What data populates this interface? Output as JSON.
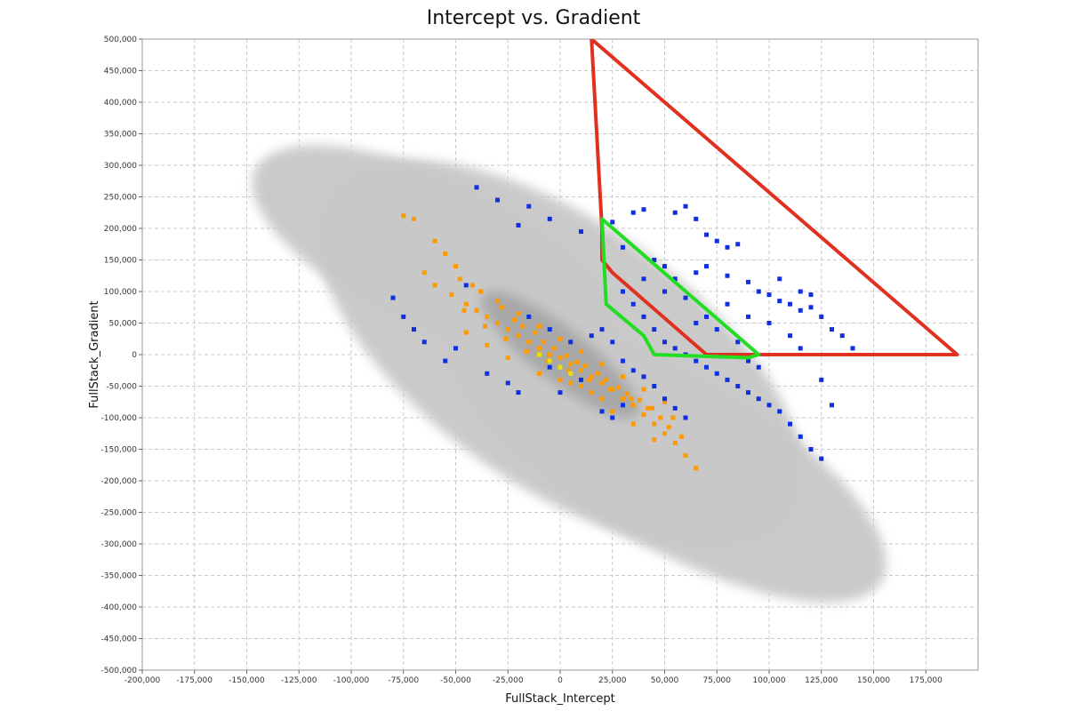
{
  "chart_data": {
    "type": "scatter",
    "title": "Intercept vs. Gradient",
    "xlabel": "FullStack_Intercept",
    "ylabel": "FullStack_Gradient",
    "xlim": [
      -200000,
      200000
    ],
    "ylim": [
      -500000,
      500000
    ],
    "x_ticks": [
      "-200,000",
      "-175,000",
      "-150,000",
      "-125,000",
      "-100,000",
      "-75,000",
      "-50,000",
      "-25,000",
      "0",
      "25,000",
      "50,000",
      "75,000",
      "100,000",
      "125,000",
      "150,000",
      "175,000"
    ],
    "x_tick_values": [
      -200000,
      -175000,
      -150000,
      -125000,
      -100000,
      -75000,
      -50000,
      -25000,
      0,
      25000,
      50000,
      75000,
      100000,
      125000,
      150000,
      175000
    ],
    "y_ticks": [
      "500,000",
      "450,000",
      "400,000",
      "350,000",
      "300,000",
      "250,000",
      "200,000",
      "150,000",
      "100,000",
      "50,000",
      "0",
      "-50,000",
      "-100,000",
      "-150,000",
      "-200,000",
      "-250,000",
      "-300,000",
      "-350,000",
      "-400,000",
      "-450,000",
      "-500,000"
    ],
    "y_tick_values": [
      500000,
      450000,
      400000,
      350000,
      300000,
      250000,
      200000,
      150000,
      100000,
      50000,
      0,
      -50000,
      -100000,
      -150000,
      -200000,
      -250000,
      -300000,
      -350000,
      -400000,
      -450000,
      -500000
    ],
    "grid": true,
    "background_cloud": {
      "color": "#c8c8c8",
      "ellipses": [
        {
          "cx": 0,
          "cy": 0,
          "rx": 135000,
          "ry": 210000,
          "rotate": 35
        },
        {
          "cx": 50000,
          "cy": -160000,
          "rx": 120000,
          "ry": 140000,
          "rotate": 30
        },
        {
          "cx": -60000,
          "cy": 160000,
          "rx": 95000,
          "ry": 120000,
          "rotate": 25
        }
      ]
    },
    "series": [
      {
        "color": "#ff9900",
        "points": [
          [
            -65000,
            130000
          ],
          [
            -60000,
            110000
          ],
          [
            -52000,
            95000
          ],
          [
            -45000,
            80000
          ],
          [
            -40000,
            70000
          ],
          [
            -35000,
            60000
          ],
          [
            -30000,
            50000
          ],
          [
            -25000,
            40000
          ],
          [
            -20000,
            30000
          ],
          [
            -15000,
            20000
          ],
          [
            -10000,
            10000
          ],
          [
            -5000,
            0
          ],
          [
            0,
            -5000
          ],
          [
            5000,
            -15000
          ],
          [
            10000,
            -25000
          ],
          [
            15000,
            -35000
          ],
          [
            20000,
            -45000
          ],
          [
            25000,
            -55000
          ],
          [
            30000,
            -70000
          ],
          [
            35000,
            -80000
          ],
          [
            40000,
            -95000
          ],
          [
            45000,
            -110000
          ],
          [
            50000,
            -125000
          ],
          [
            55000,
            -140000
          ],
          [
            -75000,
            220000
          ],
          [
            -70000,
            215000
          ],
          [
            -60000,
            180000
          ],
          [
            -50000,
            140000
          ],
          [
            -48000,
            120000
          ],
          [
            -42000,
            110000
          ],
          [
            -38000,
            100000
          ],
          [
            -55000,
            160000
          ],
          [
            -28000,
            75000
          ],
          [
            -22000,
            55000
          ],
          [
            -18000,
            45000
          ],
          [
            -12000,
            35000
          ],
          [
            -8000,
            20000
          ],
          [
            -3000,
            10000
          ],
          [
            3000,
            -2000
          ],
          [
            8000,
            -12000
          ],
          [
            12000,
            -18000
          ],
          [
            18000,
            -30000
          ],
          [
            22000,
            -40000
          ],
          [
            28000,
            -52000
          ],
          [
            32000,
            -62000
          ],
          [
            38000,
            -72000
          ],
          [
            42000,
            -85000
          ],
          [
            48000,
            -100000
          ],
          [
            52000,
            -115000
          ],
          [
            58000,
            -130000
          ],
          [
            -46000,
            70000
          ],
          [
            -36000,
            45000
          ],
          [
            -26000,
            25000
          ],
          [
            -16000,
            5000
          ],
          [
            -6000,
            -10000
          ],
          [
            4000,
            -25000
          ],
          [
            14000,
            -40000
          ],
          [
            24000,
            -55000
          ],
          [
            34000,
            -70000
          ],
          [
            44000,
            -85000
          ],
          [
            54000,
            -100000
          ],
          [
            -30000,
            85000
          ],
          [
            -20000,
            65000
          ],
          [
            -10000,
            45000
          ],
          [
            0,
            25000
          ],
          [
            10000,
            5000
          ],
          [
            20000,
            -15000
          ],
          [
            30000,
            -35000
          ],
          [
            40000,
            -55000
          ],
          [
            50000,
            -75000
          ],
          [
            60000,
            -160000
          ],
          [
            65000,
            -180000
          ],
          [
            -10000,
            -30000
          ],
          [
            0,
            -40000
          ],
          [
            10000,
            -50000
          ],
          [
            20000,
            -70000
          ],
          [
            -25000,
            -5000
          ],
          [
            -35000,
            15000
          ],
          [
            -45000,
            35000
          ],
          [
            25000,
            -90000
          ],
          [
            35000,
            -110000
          ],
          [
            45000,
            -135000
          ],
          [
            15000,
            -60000
          ],
          [
            5000,
            -45000
          ]
        ]
      },
      {
        "color": "#1030e0",
        "points": [
          [
            -40000,
            265000
          ],
          [
            -30000,
            245000
          ],
          [
            -15000,
            235000
          ],
          [
            -20000,
            205000
          ],
          [
            -5000,
            215000
          ],
          [
            10000,
            195000
          ],
          [
            25000,
            210000
          ],
          [
            35000,
            225000
          ],
          [
            40000,
            230000
          ],
          [
            55000,
            225000
          ],
          [
            60000,
            235000
          ],
          [
            65000,
            215000
          ],
          [
            70000,
            190000
          ],
          [
            75000,
            180000
          ],
          [
            80000,
            170000
          ],
          [
            85000,
            175000
          ],
          [
            30000,
            170000
          ],
          [
            45000,
            150000
          ],
          [
            50000,
            140000
          ],
          [
            55000,
            120000
          ],
          [
            65000,
            130000
          ],
          [
            70000,
            140000
          ],
          [
            80000,
            125000
          ],
          [
            90000,
            115000
          ],
          [
            95000,
            100000
          ],
          [
            100000,
            95000
          ],
          [
            105000,
            85000
          ],
          [
            110000,
            80000
          ],
          [
            115000,
            70000
          ],
          [
            120000,
            75000
          ],
          [
            125000,
            60000
          ],
          [
            130000,
            40000
          ],
          [
            135000,
            30000
          ],
          [
            -80000,
            90000
          ],
          [
            -75000,
            60000
          ],
          [
            -70000,
            40000
          ],
          [
            -65000,
            20000
          ],
          [
            -55000,
            -10000
          ],
          [
            -50000,
            10000
          ],
          [
            30000,
            100000
          ],
          [
            35000,
            80000
          ],
          [
            40000,
            60000
          ],
          [
            45000,
            40000
          ],
          [
            50000,
            20000
          ],
          [
            55000,
            10000
          ],
          [
            60000,
            0
          ],
          [
            65000,
            -10000
          ],
          [
            70000,
            -20000
          ],
          [
            75000,
            -30000
          ],
          [
            80000,
            -40000
          ],
          [
            85000,
            -50000
          ],
          [
            90000,
            -60000
          ],
          [
            95000,
            -70000
          ],
          [
            100000,
            -80000
          ],
          [
            105000,
            -90000
          ],
          [
            110000,
            -110000
          ],
          [
            115000,
            -130000
          ],
          [
            120000,
            -150000
          ],
          [
            125000,
            -165000
          ],
          [
            20000,
            40000
          ],
          [
            15000,
            30000
          ],
          [
            5000,
            20000
          ],
          [
            -5000,
            40000
          ],
          [
            -15000,
            60000
          ],
          [
            25000,
            20000
          ],
          [
            30000,
            -10000
          ],
          [
            35000,
            -25000
          ],
          [
            40000,
            -35000
          ],
          [
            45000,
            -50000
          ],
          [
            50000,
            -70000
          ],
          [
            55000,
            -85000
          ],
          [
            60000,
            -100000
          ],
          [
            20000,
            -90000
          ],
          [
            25000,
            -100000
          ],
          [
            30000,
            -80000
          ],
          [
            10000,
            -40000
          ],
          [
            0,
            -60000
          ],
          [
            -5000,
            -20000
          ],
          [
            70000,
            60000
          ],
          [
            75000,
            40000
          ],
          [
            85000,
            20000
          ],
          [
            90000,
            -10000
          ],
          [
            95000,
            -20000
          ],
          [
            110000,
            30000
          ],
          [
            115000,
            10000
          ],
          [
            125000,
            -40000
          ],
          [
            130000,
            -80000
          ],
          [
            140000,
            10000
          ],
          [
            60000,
            90000
          ],
          [
            50000,
            100000
          ],
          [
            40000,
            120000
          ],
          [
            100000,
            50000
          ],
          [
            65000,
            50000
          ],
          [
            80000,
            80000
          ],
          [
            90000,
            60000
          ],
          [
            105000,
            120000
          ],
          [
            115000,
            100000
          ],
          [
            120000,
            95000
          ],
          [
            -45000,
            110000
          ],
          [
            -35000,
            -30000
          ],
          [
            -25000,
            -45000
          ],
          [
            -20000,
            -60000
          ]
        ]
      },
      {
        "color": "#e8e000",
        "points": [
          [
            -5000,
            -10000
          ],
          [
            0,
            -20000
          ],
          [
            5000,
            -30000
          ],
          [
            -10000,
            0
          ]
        ]
      }
    ],
    "annotations": [
      {
        "shape": "polygon",
        "color": "#e03020",
        "points": [
          [
            15000,
            500000
          ],
          [
            20000,
            200000
          ],
          [
            20000,
            150000
          ],
          [
            25000,
            130000
          ],
          [
            70000,
            0
          ],
          [
            190000,
            0
          ]
        ]
      },
      {
        "shape": "polygon",
        "color": "#22dd22",
        "points": [
          [
            20000,
            215000
          ],
          [
            22000,
            80000
          ],
          [
            40000,
            30000
          ],
          [
            45000,
            0
          ],
          [
            90000,
            -5000
          ],
          [
            95000,
            0
          ]
        ]
      }
    ]
  }
}
